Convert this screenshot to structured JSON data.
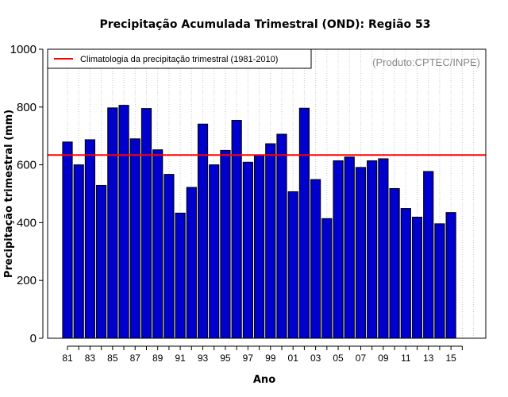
{
  "chart_data": {
    "type": "bar",
    "title": "Precipitação Acumulada Trimestral (OND): Região 53",
    "xlabel": "Ano",
    "ylabel": "Precipitação trimestral (mm)",
    "ylim": [
      0,
      1000
    ],
    "yticks": [
      0,
      200,
      400,
      600,
      800,
      1000
    ],
    "categories": [
      "81",
      "82",
      "83",
      "84",
      "85",
      "86",
      "87",
      "88",
      "89",
      "90",
      "91",
      "92",
      "93",
      "94",
      "95",
      "96",
      "97",
      "98",
      "99",
      "00",
      "01",
      "02",
      "03",
      "04",
      "05",
      "06",
      "07",
      "08",
      "09",
      "10",
      "11",
      "12",
      "13",
      "14",
      "15"
    ],
    "tick_labels": [
      "81",
      "83",
      "85",
      "87",
      "89",
      "91",
      "93",
      "95",
      "97",
      "99",
      "01",
      "03",
      "05",
      "07",
      "09",
      "11",
      "13",
      "15"
    ],
    "values": [
      679,
      600,
      687,
      529,
      797,
      806,
      690,
      795,
      652,
      567,
      433,
      522,
      741,
      600,
      650,
      754,
      609,
      632,
      673,
      706,
      507,
      796,
      549,
      414,
      614,
      627,
      591,
      614,
      621,
      518,
      449,
      419,
      577,
      396,
      435
    ],
    "reference_line": {
      "label": "Climatologia da precipitação trimestral (1981-2010)",
      "value": 634,
      "color": "#ff0000"
    },
    "bar_color": "#0000cc",
    "legend_position": "top-left",
    "grid": "vertical dotted",
    "credit": "(Produto:CPTEC/INPE)"
  }
}
